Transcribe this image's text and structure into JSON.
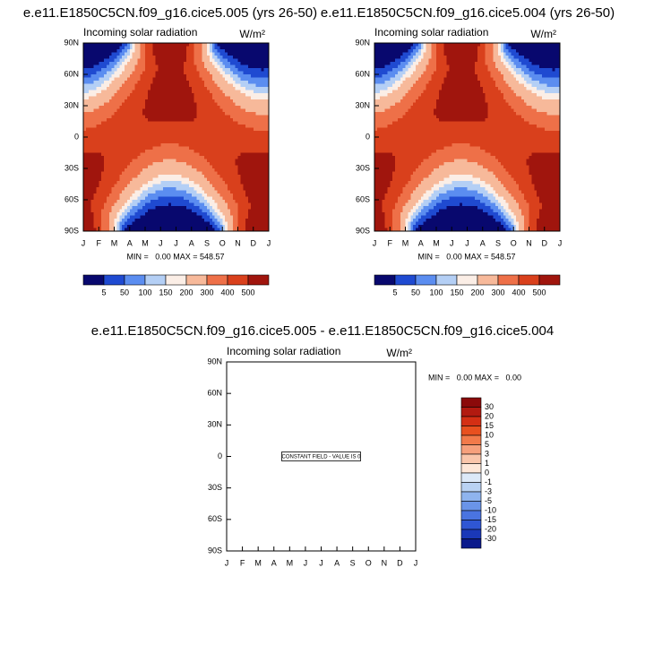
{
  "chart_data": [
    {
      "type": "contour",
      "title": "e.e11.E1850C5CN.f09_g16.cice5.005 (yrs 26-50)",
      "subtitle": "Incoming solar radiation",
      "units": "W/m²",
      "categories": [
        "J",
        "F",
        "M",
        "A",
        "M",
        "J",
        "J",
        "A",
        "S",
        "O",
        "N",
        "D",
        "J"
      ],
      "ylim": [
        -90,
        90
      ],
      "yticks": [
        {
          "value": 90,
          "label": "90N"
        },
        {
          "value": 60,
          "label": "60N"
        },
        {
          "value": 30,
          "label": "30N"
        },
        0,
        {
          "value": -30,
          "label": "30S"
        },
        {
          "value": -60,
          "label": "60S"
        },
        {
          "value": -90,
          "label": "90S"
        }
      ],
      "stats": "MIN =   0.00 MAX = 548.57",
      "levels": [
        5,
        50,
        100,
        150,
        200,
        300,
        400,
        500
      ],
      "colors": [
        "#08086e",
        "#1f4ad1",
        "#5b8df0",
        "#b4cff5",
        "#fbeee6",
        "#f7b99a",
        "#ee7048",
        "#d9401c",
        "#a0150d"
      ]
    },
    {
      "type": "contour",
      "title": "e.e11.E1850C5CN.f09_g16.cice5.004 (yrs 26-50)",
      "subtitle": "Incoming solar radiation",
      "units": "W/m²",
      "categories": [
        "J",
        "F",
        "M",
        "A",
        "M",
        "J",
        "J",
        "A",
        "S",
        "O",
        "N",
        "D",
        "J"
      ],
      "ylim": [
        -90,
        90
      ],
      "yticks": [
        {
          "value": 90,
          "label": "90N"
        },
        {
          "value": 60,
          "label": "60N"
        },
        {
          "value": 30,
          "label": "30N"
        },
        0,
        {
          "value": -30,
          "label": "30S"
        },
        {
          "value": -60,
          "label": "60S"
        },
        {
          "value": -90,
          "label": "90S"
        }
      ],
      "stats": "MIN =   0.00 MAX = 548.57",
      "levels": [
        5,
        50,
        100,
        150,
        200,
        300,
        400,
        500
      ],
      "colors": [
        "#08086e",
        "#1f4ad1",
        "#5b8df0",
        "#b4cff5",
        "#fbeee6",
        "#f7b99a",
        "#ee7048",
        "#d9401c",
        "#a0150d"
      ]
    },
    {
      "type": "contour",
      "title": "e.e11.E1850C5CN.f09_g16.cice5.005 - e.e11.E1850C5CN.f09_g16.cice5.004",
      "subtitle": "Incoming solar radiation",
      "units": "W/m²",
      "categories": [
        "J",
        "F",
        "M",
        "A",
        "M",
        "J",
        "J",
        "A",
        "S",
        "O",
        "N",
        "D",
        "J"
      ],
      "ylim": [
        -90,
        90
      ],
      "yticks": [
        {
          "value": 90,
          "label": "90N"
        },
        {
          "value": 60,
          "label": "60N"
        },
        {
          "value": 30,
          "label": "30N"
        },
        0,
        {
          "value": -30,
          "label": "30S"
        },
        {
          "value": -60,
          "label": "60S"
        },
        {
          "value": -90,
          "label": "90S"
        }
      ],
      "stats": "MIN =   0.00 MAX =   0.00",
      "annotation": "CONSTANT FIELD - VALUE IS 0",
      "levels": [
        30,
        20,
        15,
        10,
        5,
        3,
        1,
        0,
        -1,
        -3,
        -5,
        -10,
        -15,
        -20,
        -30
      ],
      "colors": [
        "#8b0a0a",
        "#b21a10",
        "#d42f14",
        "#e8501f",
        "#f27a4a",
        "#f6a07c",
        "#f9c6ab",
        "#fde7d8",
        "#dce9f8",
        "#b9d2f3",
        "#8fb4ee",
        "#6a94e8",
        "#4a74e0",
        "#2f56d4",
        "#1a38b8",
        "#0b1a8c"
      ]
    }
  ]
}
